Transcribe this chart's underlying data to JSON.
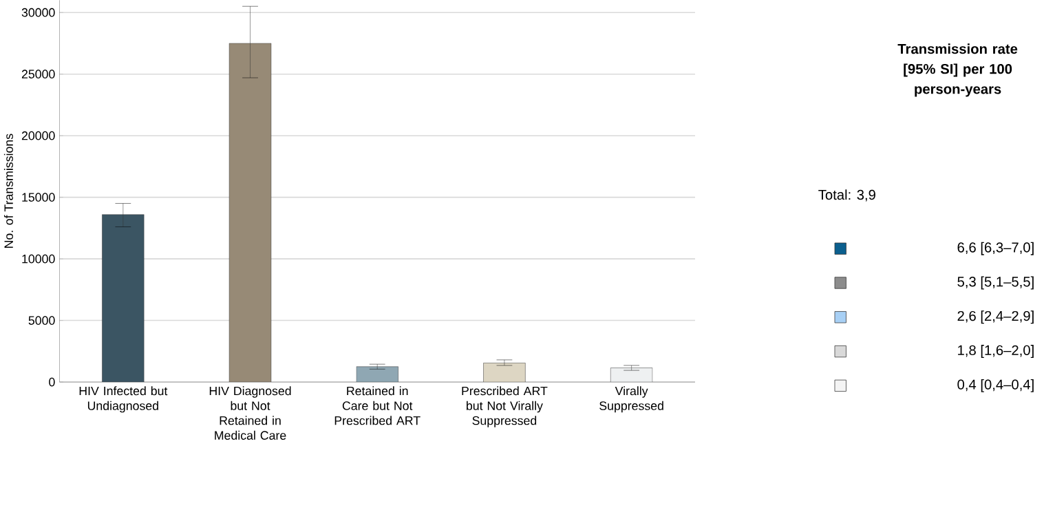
{
  "chart_data": [
    {
      "type": "bar",
      "ylabel": "No. of Transmissions",
      "categories": [
        "HIV Infected but Undiagnosed",
        "HIV Diagnosed but Not Retained in Medical Care",
        "Retained in Care but Not Prescribed ART",
        "Prescribed ART but Not Virally Suppressed",
        "Virally Suppressed"
      ],
      "values": [
        13600,
        27500,
        1250,
        1550,
        1150
      ],
      "errors": [
        [
          12600,
          14500
        ],
        [
          24700,
          30500
        ],
        [
          1050,
          1450
        ],
        [
          1350,
          1800
        ],
        [
          950,
          1350
        ]
      ],
      "colors": [
        "#3b5563",
        "#978a76",
        "#8fa7b3",
        "#ddd6c3",
        "#eef0f1"
      ],
      "ylim": [
        0,
        31000
      ],
      "yticks": [
        0,
        5000,
        10000,
        15000,
        20000,
        25000,
        30000
      ],
      "grid": "y"
    },
    {
      "type": "other",
      "title": "Transmission rate [95% SI] per 100 person-years",
      "annotations": [
        "Total:   3,9"
      ],
      "categories": [
        "6,6  [6,3–7,0]",
        "5,3  [5,1–5,5]",
        "2,6  [2,4–2,9]",
        "1,8  [1,6–2,0]",
        "0,4  [0,4–0,4]"
      ],
      "colors": [
        "#0b5f8e",
        "#8c8c8c",
        "#a8d0f5",
        "#d9d9d9",
        "#f4f4f4"
      ]
    }
  ]
}
